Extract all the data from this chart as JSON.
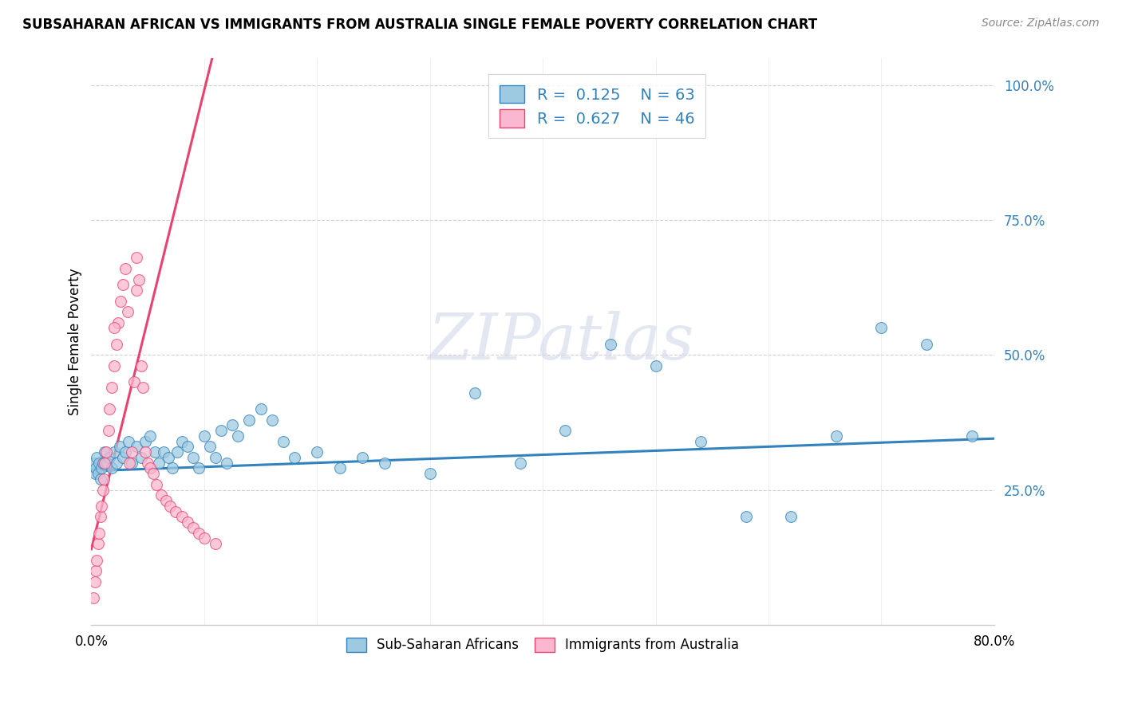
{
  "title": "SUBSAHARAN AFRICAN VS IMMIGRANTS FROM AUSTRALIA SINGLE FEMALE POVERTY CORRELATION CHART",
  "source": "Source: ZipAtlas.com",
  "ylabel": "Single Female Poverty",
  "right_yticks": [
    "100.0%",
    "75.0%",
    "50.0%",
    "25.0%"
  ],
  "right_ytick_vals": [
    1.0,
    0.75,
    0.5,
    0.25
  ],
  "r1": 0.125,
  "n1": 63,
  "r2": 0.627,
  "n2": 46,
  "color_blue": "#9ecae1",
  "color_blue_dark": "#3182bd",
  "color_pink": "#fcb7d0",
  "color_pink_dark": "#e8436e",
  "watermark": "ZIPatlas",
  "blue_x": [
    0.002,
    0.003,
    0.004,
    0.005,
    0.006,
    0.007,
    0.008,
    0.009,
    0.01,
    0.012,
    0.014,
    0.016,
    0.018,
    0.02,
    0.022,
    0.025,
    0.028,
    0.03,
    0.033,
    0.036,
    0.04,
    0.044,
    0.048,
    0.052,
    0.056,
    0.06,
    0.064,
    0.068,
    0.072,
    0.076,
    0.08,
    0.085,
    0.09,
    0.095,
    0.1,
    0.105,
    0.11,
    0.115,
    0.12,
    0.125,
    0.13,
    0.14,
    0.15,
    0.16,
    0.17,
    0.18,
    0.2,
    0.22,
    0.24,
    0.26,
    0.3,
    0.34,
    0.38,
    0.42,
    0.46,
    0.5,
    0.54,
    0.58,
    0.62,
    0.66,
    0.7,
    0.74,
    0.78
  ],
  "blue_y": [
    0.3,
    0.28,
    0.29,
    0.31,
    0.28,
    0.3,
    0.27,
    0.29,
    0.3,
    0.32,
    0.3,
    0.31,
    0.29,
    0.32,
    0.3,
    0.33,
    0.31,
    0.32,
    0.34,
    0.3,
    0.33,
    0.31,
    0.34,
    0.35,
    0.32,
    0.3,
    0.32,
    0.31,
    0.29,
    0.32,
    0.34,
    0.33,
    0.31,
    0.29,
    0.35,
    0.33,
    0.31,
    0.36,
    0.3,
    0.37,
    0.35,
    0.38,
    0.4,
    0.38,
    0.34,
    0.31,
    0.32,
    0.29,
    0.31,
    0.3,
    0.28,
    0.43,
    0.3,
    0.36,
    0.52,
    0.48,
    0.34,
    0.2,
    0.2,
    0.35,
    0.55,
    0.52,
    0.35
  ],
  "pink_x": [
    0.002,
    0.003,
    0.004,
    0.005,
    0.006,
    0.007,
    0.008,
    0.009,
    0.01,
    0.011,
    0.012,
    0.013,
    0.015,
    0.016,
    0.018,
    0.02,
    0.022,
    0.024,
    0.026,
    0.028,
    0.03,
    0.032,
    0.034,
    0.036,
    0.038,
    0.04,
    0.042,
    0.044,
    0.046,
    0.048,
    0.05,
    0.052,
    0.055,
    0.058,
    0.062,
    0.066,
    0.07,
    0.075,
    0.08,
    0.085,
    0.09,
    0.095,
    0.1,
    0.11,
    0.04,
    0.02
  ],
  "pink_y": [
    0.05,
    0.08,
    0.1,
    0.12,
    0.15,
    0.17,
    0.2,
    0.22,
    0.25,
    0.27,
    0.3,
    0.32,
    0.36,
    0.4,
    0.44,
    0.48,
    0.52,
    0.56,
    0.6,
    0.63,
    0.66,
    0.58,
    0.3,
    0.32,
    0.45,
    0.62,
    0.64,
    0.48,
    0.44,
    0.32,
    0.3,
    0.29,
    0.28,
    0.26,
    0.24,
    0.23,
    0.22,
    0.21,
    0.2,
    0.19,
    0.18,
    0.17,
    0.16,
    0.15,
    0.68,
    0.55
  ],
  "blue_line_x": [
    0.0,
    0.8
  ],
  "blue_line_y": [
    0.285,
    0.345
  ],
  "pink_line_x0": 0.0,
  "pink_line_y0": 0.14,
  "pink_line_slope": 8.5,
  "xlim": [
    0.0,
    0.8
  ],
  "ylim": [
    0.0,
    1.05
  ]
}
